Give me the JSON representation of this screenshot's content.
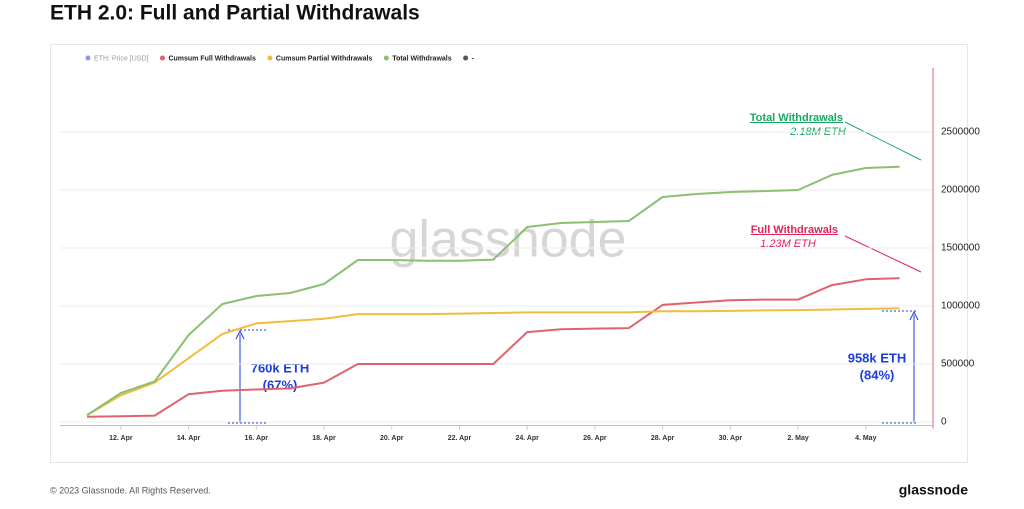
{
  "chart_data": {
    "type": "line",
    "title": "ETH 2.0: Full and Partial Withdrawals",
    "categories": [
      null,
      "12. Apr",
      null,
      "14. Apr",
      null,
      "16. Apr",
      null,
      "18. Apr",
      null,
      "20. Apr",
      null,
      "22. Apr",
      null,
      "24. Apr",
      null,
      "26. Apr",
      null,
      "28. Apr",
      null,
      "30. Apr",
      null,
      "2. May",
      null,
      "4. May",
      null
    ],
    "series": [
      {
        "name": "ETH: Price [USD]",
        "color": "#6f7fe6",
        "values": [
          null,
          null,
          null,
          null,
          null,
          null,
          null,
          null,
          null,
          null,
          null,
          null,
          null,
          null,
          null,
          null,
          null,
          null,
          null,
          null,
          null,
          null,
          null,
          null,
          null
        ]
      },
      {
        "name": "Cumsum Full Withdrawals",
        "color": "#e0636b",
        "values": [
          45000,
          50000,
          55000,
          240000,
          270000,
          280000,
          290000,
          340000,
          500000,
          500000,
          500000,
          500000,
          500000,
          775000,
          800000,
          805000,
          810000,
          1010000,
          1030000,
          1050000,
          1055000,
          1055000,
          1180000,
          1230000,
          1240000
        ]
      },
      {
        "name": "Cumsum Partial Withdrawals",
        "color": "#f2bc3c",
        "values": [
          60000,
          230000,
          340000,
          550000,
          760000,
          850000,
          870000,
          890000,
          930000,
          930000,
          930000,
          935000,
          940000,
          945000,
          945000,
          945000,
          945000,
          955000,
          955000,
          958000,
          962000,
          965000,
          970000,
          975000,
          980000
        ]
      },
      {
        "name": "Total Withdrawals",
        "color": "#8cc071",
        "values": [
          60000,
          250000,
          350000,
          750000,
          1017000,
          1086000,
          1112000,
          1190000,
          1397000,
          1397000,
          1390000,
          1390000,
          1400000,
          1681000,
          1716000,
          1724000,
          1733000,
          1940000,
          1966000,
          1983000,
          1991000,
          2000000,
          2130000,
          2190000,
          2200000
        ]
      },
      {
        "name": "-",
        "color": "#555555",
        "values": [
          null,
          null,
          null,
          null,
          null,
          null,
          null,
          null,
          null,
          null,
          null,
          null,
          null,
          null,
          null,
          null,
          null,
          null,
          null,
          null,
          null,
          null,
          null,
          null,
          null
        ]
      }
    ],
    "ylim": [
      -30000,
      3000000
    ],
    "yticks": [
      0,
      500000,
      1000000,
      1500000,
      2000000,
      2500000
    ],
    "grid": true,
    "legend": "top-left",
    "annotations": [
      "Total Withdrawals",
      "2.18M ETH",
      "Full Withdrawals",
      "1.23M ETH",
      "760k ETH",
      "(67%)",
      "958k ETH",
      "(84%)"
    ],
    "watermark": "glassnode",
    "footer": "© 2023 Glassnode. All Rights Reserved.",
    "logo": "glassnode"
  }
}
